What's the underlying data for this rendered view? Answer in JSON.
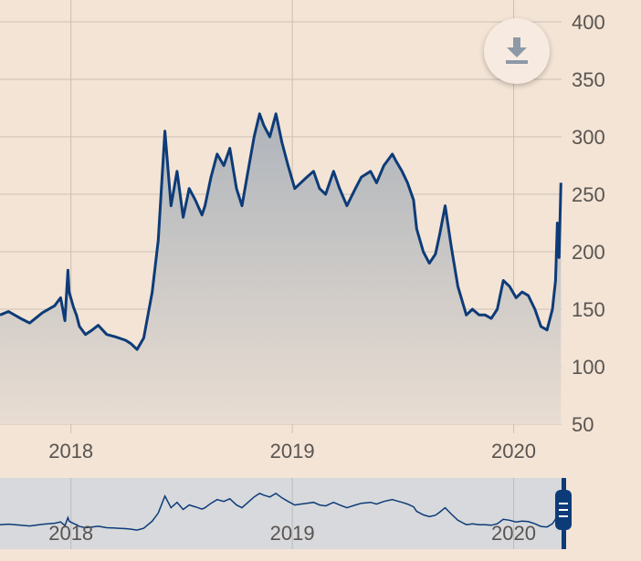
{
  "chart_data": {
    "type": "area",
    "x_labels": [
      "2018",
      "2019",
      "2020"
    ],
    "y_ticks": [
      50,
      100,
      150,
      200,
      250,
      300,
      350,
      400
    ],
    "ylim": [
      50,
      400
    ],
    "xlim": [
      "2017-09-06",
      "2020-03-20"
    ],
    "grid": true,
    "series": [
      {
        "x": [
          "2017-09-06",
          "2017-09-20",
          "2017-10-10",
          "2017-10-25",
          "2017-11-15",
          "2017-12-05",
          "2017-12-15",
          "2017-12-22",
          "2017-12-27",
          "2017-12-29",
          "2018-01-05",
          "2018-01-10",
          "2018-01-15",
          "2018-01-25",
          "2018-02-05",
          "2018-02-15",
          "2018-03-01",
          "2018-03-15",
          "2018-04-01",
          "2018-04-10",
          "2018-04-20",
          "2018-05-01",
          "2018-05-15",
          "2018-05-25",
          "2018-06-05",
          "2018-06-15",
          "2018-06-25",
          "2018-07-05",
          "2018-07-15",
          "2018-07-25",
          "2018-08-05",
          "2018-08-10",
          "2018-08-20",
          "2018-08-30",
          "2018-09-10",
          "2018-09-20",
          "2018-10-01",
          "2018-10-10",
          "2018-10-20",
          "2018-10-30",
          "2018-11-08",
          "2018-11-15",
          "2018-11-25",
          "2018-12-05",
          "2018-12-15",
          "2018-12-25",
          "2019-01-05",
          "2019-01-15",
          "2019-01-25",
          "2019-02-05",
          "2019-02-15",
          "2019-02-25",
          "2019-03-10",
          "2019-03-20",
          "2019-04-01",
          "2019-04-15",
          "2019-04-25",
          "2019-05-10",
          "2019-05-20",
          "2019-06-01",
          "2019-06-15",
          "2019-06-20",
          "2019-07-01",
          "2019-07-10",
          "2019-07-20",
          "2019-07-25",
          "2019-08-05",
          "2019-08-15",
          "2019-08-25",
          "2019-09-01",
          "2019-09-10",
          "2019-09-20",
          "2019-10-01",
          "2019-10-15",
          "2019-10-25",
          "2019-11-05",
          "2019-11-15",
          "2019-11-25",
          "2019-12-05",
          "2019-12-15",
          "2019-12-25",
          "2020-01-05",
          "2020-01-15",
          "2020-01-25",
          "2020-02-05",
          "2020-02-15",
          "2020-02-25",
          "2020-03-05",
          "2020-03-10",
          "2020-03-13",
          "2020-03-16",
          "2020-03-19"
        ],
        "y": [
          145,
          148,
          142,
          138,
          147,
          153,
          160,
          140,
          184,
          165,
          152,
          145,
          135,
          128,
          132,
          136,
          128,
          126,
          123,
          120,
          115,
          125,
          165,
          210,
          305,
          240,
          270,
          230,
          255,
          245,
          232,
          240,
          265,
          285,
          275,
          290,
          255,
          240,
          270,
          300,
          320,
          310,
          300,
          320,
          295,
          275,
          255,
          260,
          265,
          270,
          255,
          250,
          270,
          255,
          240,
          255,
          265,
          270,
          260,
          275,
          285,
          280,
          270,
          260,
          245,
          220,
          200,
          190,
          198,
          215,
          240,
          205,
          170,
          145,
          150,
          145,
          145,
          142,
          150,
          175,
          170,
          160,
          165,
          162,
          150,
          135,
          132,
          150,
          175,
          225,
          195,
          260
        ]
      }
    ]
  },
  "navigator": {
    "x_labels": [
      "2018",
      "2019",
      "2020"
    ]
  },
  "controls": {
    "download_icon": "download-icon",
    "handle_icon": "range-handle-icon"
  }
}
